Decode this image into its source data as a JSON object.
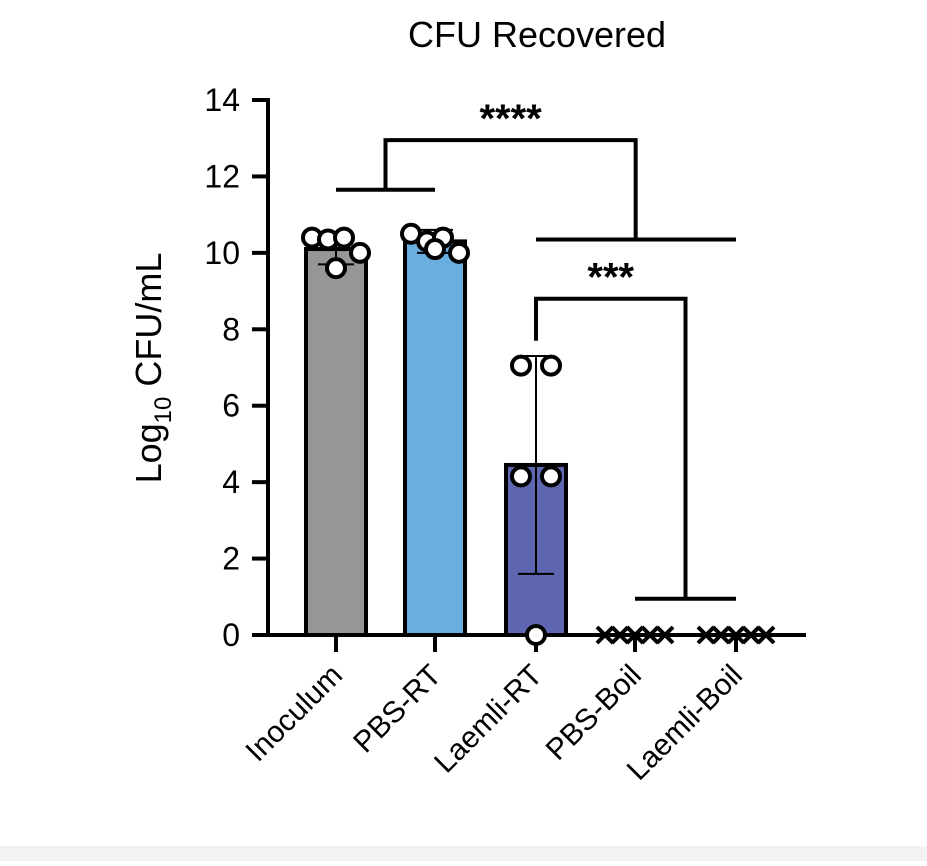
{
  "chart_data": {
    "type": "bar",
    "title": "CFU Recovered",
    "ylabel": "Log10 CFU/mL",
    "ylabel_main": "Log",
    "ylabel_sub": "10",
    "ylabel_rest": " CFU/mL",
    "ylim": [
      0,
      14
    ],
    "yticks": [
      0,
      2,
      4,
      6,
      8,
      10,
      12,
      14
    ],
    "categories": [
      "Inoculum",
      "PBS-RT",
      "Laemli-RT",
      "PBS-Boil",
      "Laemli-Boil"
    ],
    "values": [
      10.1,
      10.3,
      4.45,
      0,
      0
    ],
    "error_bars": [
      {
        "low": 9.7,
        "high": 10.5
      },
      {
        "low": 10.0,
        "high": 10.6
      },
      {
        "low": 1.6,
        "high": 7.3
      },
      null,
      null
    ],
    "points": [
      [
        10.4,
        10.35,
        10.4,
        10.0,
        9.6
      ],
      [
        10.5,
        10.3,
        10.4,
        10.0,
        10.1
      ],
      [
        7.05,
        7.05,
        4.15,
        4.15,
        0.0
      ],
      [
        0,
        0,
        0,
        0,
        0
      ],
      [
        0,
        0,
        0,
        0,
        0
      ]
    ],
    "colors": [
      "#969696",
      "#6aaedf",
      "#5f66b1",
      "#ffffff",
      "#ffffff"
    ],
    "significance": [
      {
        "label": "****",
        "from_group": [
          0,
          1
        ],
        "to_group": [
          2,
          3,
          4
        ],
        "left_y": 11.65,
        "top_y": 12.95,
        "right_y": 10.35
      },
      {
        "label": "***",
        "from_group": [
          2
        ],
        "to_group": [
          3,
          4
        ],
        "left_y": 7.7,
        "top_y": 8.8,
        "right_y": 0.95
      }
    ],
    "grid": false,
    "legend": "none"
  }
}
